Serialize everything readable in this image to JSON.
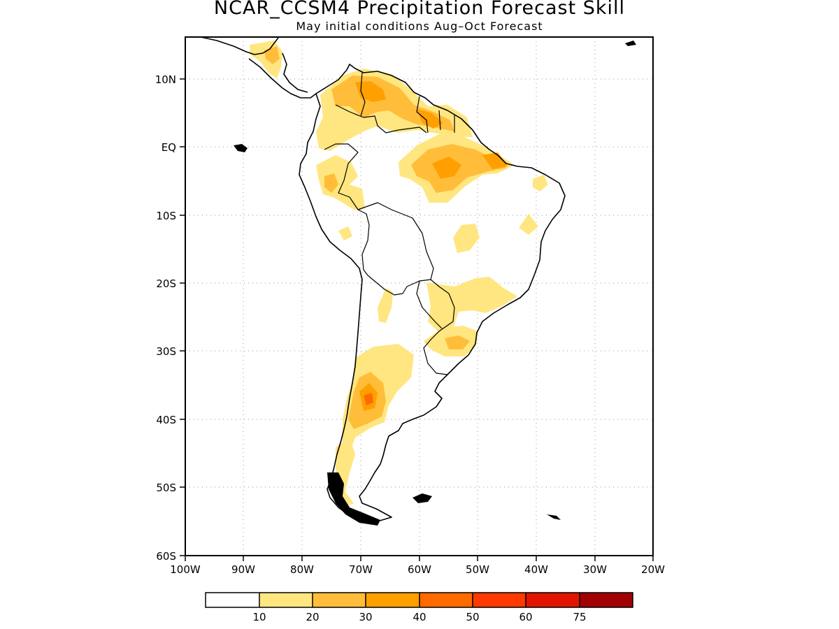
{
  "title": "NCAR_CCSM4 Precipitation Forecast Skill",
  "subtitle": "May initial conditions  Aug–Oct Forecast",
  "map": {
    "lon_range": [
      -100,
      -20
    ],
    "lat_range": [
      -60,
      15
    ],
    "gridlines": "dotted",
    "lat_labels": [
      "10N",
      "EQ",
      "10S",
      "20S",
      "30S",
      "40S",
      "50S",
      "60S"
    ],
    "lon_labels": [
      "100W",
      "90W",
      "80W",
      "70W",
      "60W",
      "50W",
      "40W",
      "30W",
      "20W"
    ]
  },
  "colorbar": {
    "colors": [
      "#ffffff",
      "#ffe680",
      "#ffbd3a",
      "#ff9f00",
      "#ff6a00",
      "#ff3a00",
      "#e01400",
      "#a10000"
    ],
    "labels": [
      "10",
      "20",
      "30",
      "40",
      "50",
      "60",
      "75"
    ]
  }
}
